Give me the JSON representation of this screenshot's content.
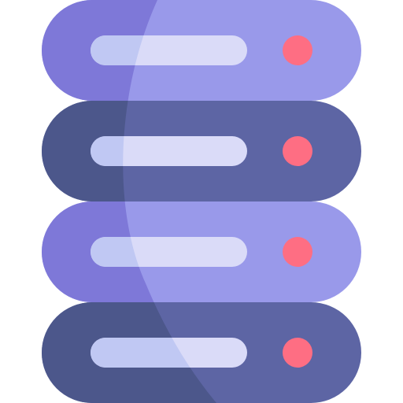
{
  "icon": {
    "name": "server-rack-icon",
    "colors": {
      "light_unit": "#9999ea",
      "light_unit_shadow": "#7e78d8",
      "dark_unit": "#5d65a4",
      "dark_unit_shadow": "#4c578b",
      "slot_light": "#dadbf8",
      "slot_shadow": "#c0c8f3",
      "status_led": "#fe6e83",
      "background": "#ffffff"
    },
    "units": [
      {
        "name": "server-unit-1",
        "tone": "light"
      },
      {
        "name": "server-unit-2",
        "tone": "dark"
      },
      {
        "name": "server-unit-3",
        "tone": "light"
      },
      {
        "name": "server-unit-4",
        "tone": "dark"
      }
    ]
  }
}
